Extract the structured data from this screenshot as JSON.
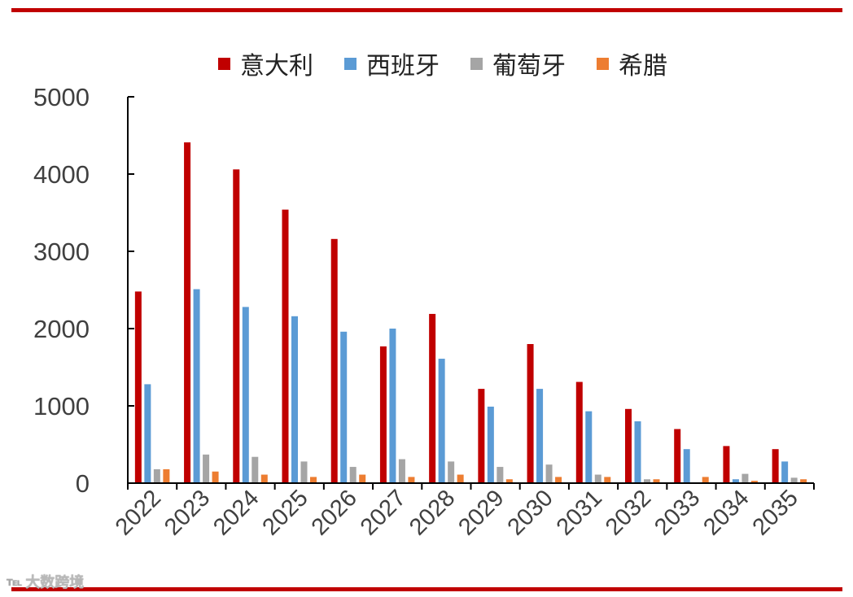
{
  "watermark": {
    "logo": "℡",
    "text": "大数跨境"
  },
  "colors": {
    "rule": "#c00000",
    "axis": "#000000",
    "tick_label": "#404040"
  },
  "chart_data": {
    "type": "bar",
    "categories": [
      "2022",
      "2023",
      "2024",
      "2025",
      "2026",
      "2027",
      "2028",
      "2029",
      "2030",
      "2031",
      "2032",
      "2033",
      "2034",
      "2035"
    ],
    "series": [
      {
        "name": "意大利",
        "color": "#c00000",
        "values": [
          2480,
          4410,
          4060,
          3540,
          3160,
          1770,
          2190,
          1220,
          1800,
          1310,
          960,
          700,
          480,
          440
        ]
      },
      {
        "name": "西班牙",
        "color": "#5b9bd5",
        "values": [
          1280,
          2510,
          2280,
          2160,
          1960,
          2000,
          1610,
          990,
          1220,
          930,
          800,
          440,
          50,
          280
        ]
      },
      {
        "name": "葡萄牙",
        "color": "#a5a5a5",
        "values": [
          180,
          370,
          340,
          280,
          210,
          310,
          280,
          210,
          240,
          110,
          50,
          10,
          120,
          70
        ]
      },
      {
        "name": "希腊",
        "color": "#ed7d31",
        "values": [
          180,
          150,
          110,
          80,
          110,
          80,
          110,
          50,
          80,
          80,
          50,
          80,
          30,
          50
        ]
      }
    ],
    "yticks": [
      "0",
      "1000",
      "2000",
      "3000",
      "4000",
      "5000"
    ],
    "ylim": [
      0,
      5000
    ],
    "grid": false,
    "legend_position": "top",
    "title": "",
    "xlabel": "",
    "ylabel": ""
  }
}
